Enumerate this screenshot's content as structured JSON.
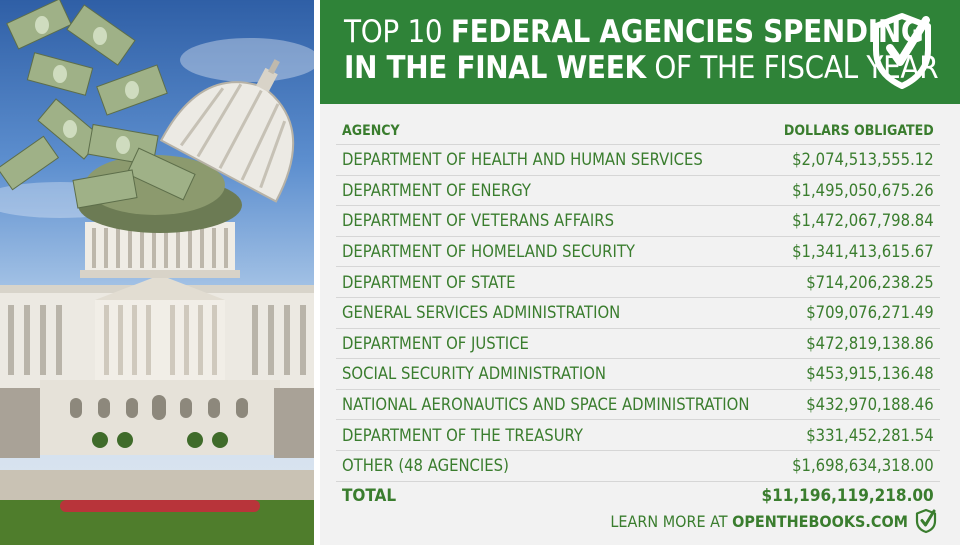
{
  "title": {
    "line1_plain": "TOP 10 ",
    "line1_bold": "FEDERAL AGENCIES SPENDING",
    "line2_bold": "IN THE FINAL WEEK",
    "line2_plain": " OF THE FISCAL YEAR"
  },
  "table": {
    "headers": {
      "agency": "AGENCY",
      "dollars": "DOLLARS OBLIGATED"
    },
    "rows": [
      {
        "agency": "DEPARTMENT OF HEALTH AND HUMAN SERVICES",
        "dollars": "$2,074,513,555.12"
      },
      {
        "agency": "DEPARTMENT OF ENERGY",
        "dollars": "$1,495,050,675.26"
      },
      {
        "agency": "DEPARTMENT OF VETERANS AFFAIRS",
        "dollars": "$1,472,067,798.84"
      },
      {
        "agency": "DEPARTMENT OF HOMELAND SECURITY",
        "dollars": "$1,341,413,615.67"
      },
      {
        "agency": "DEPARTMENT OF STATE",
        "dollars": "$714,206,238.25"
      },
      {
        "agency": "GENERAL SERVICES ADMINISTRATION",
        "dollars": "$709,076,271.49"
      },
      {
        "agency": "DEPARTMENT OF JUSTICE",
        "dollars": "$472,819,138.86"
      },
      {
        "agency": "SOCIAL SECURITY ADMINISTRATION",
        "dollars": "$453,915,136.48"
      },
      {
        "agency": "NATIONAL AERONAUTICS AND SPACE ADMINISTRATION",
        "dollars": "$432,970,188.46"
      },
      {
        "agency": "DEPARTMENT OF THE TREASURY",
        "dollars": "$331,452,281.54"
      },
      {
        "agency": "OTHER (48 AGENCIES)",
        "dollars": "$1,698,634,318.00"
      }
    ],
    "total": {
      "label": "TOTAL",
      "dollars": "$11,196,119,218.00"
    }
  },
  "footer": {
    "prefix": "LEARN MORE AT ",
    "site": "OPENTHEBOOKS.COM"
  },
  "colors": {
    "brand_green": "#2f8338",
    "text_green": "#3a7d2e",
    "panel_bg": "#f2f2f2"
  },
  "icons": {
    "badge": "shield-check-icon",
    "footer": "shield-check-icon"
  }
}
